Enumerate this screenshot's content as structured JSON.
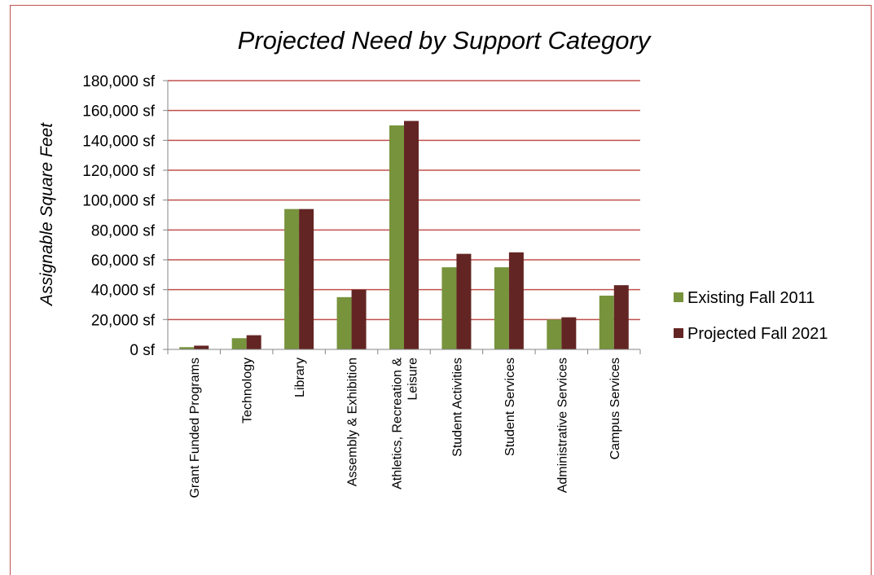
{
  "chart_data": {
    "type": "bar",
    "title": "Projected Need by Support Category",
    "xlabel": "",
    "ylabel": "Assignable Square  Feet",
    "ylim": [
      0,
      180000
    ],
    "ytick_step": 20000,
    "ytick_labels": [
      "0 sf",
      "20,000 sf",
      "40,000 sf",
      "60,000 sf",
      "80,000 sf",
      "100,000 sf",
      "120,000 sf",
      "140,000 sf",
      "160,000 sf",
      "180,000 sf"
    ],
    "grid": true,
    "grid_color": "#c0504d",
    "legend_position": "right",
    "categories": [
      [
        "Grant Funded Programs"
      ],
      [
        "Technology"
      ],
      [
        "Library"
      ],
      [
        "Assembly & Exhibition"
      ],
      [
        "Athletics, Recreation &",
        "Leisure"
      ],
      [
        "Student Activities"
      ],
      [
        "Student Services"
      ],
      [
        "Administrative Services"
      ],
      [
        "Campus Services"
      ]
    ],
    "series": [
      {
        "name": "Existing Fall 2011",
        "color": "#77933c",
        "values": [
          1500,
          7500,
          94000,
          35000,
          150000,
          55000,
          55000,
          20000,
          36000
        ]
      },
      {
        "name": "Projected Fall 2021",
        "color": "#632523",
        "values": [
          2500,
          9500,
          94000,
          40000,
          153000,
          64000,
          65000,
          21500,
          43000
        ]
      }
    ]
  }
}
